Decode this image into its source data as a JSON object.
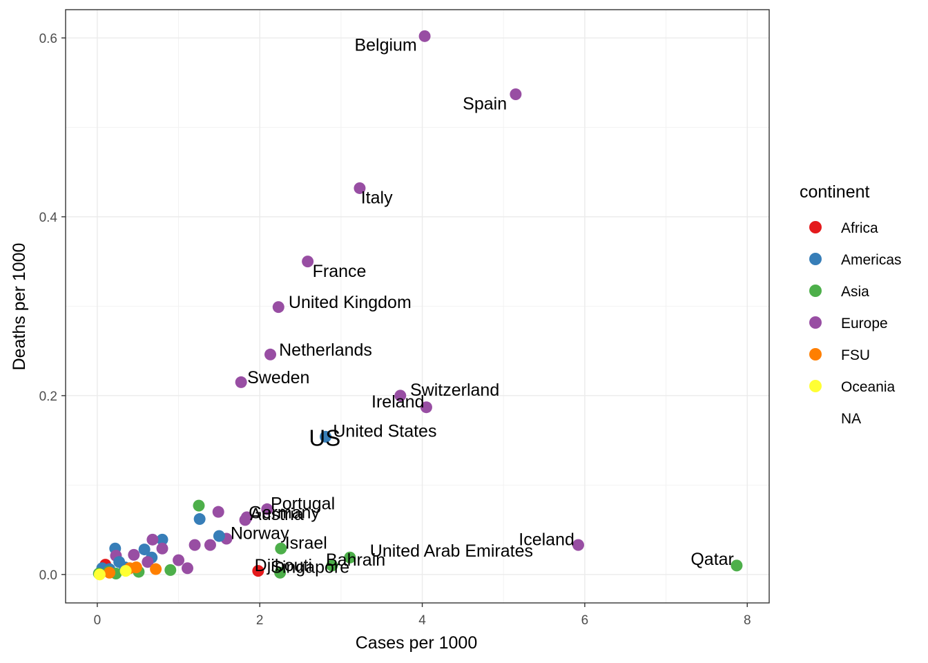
{
  "chart_data": {
    "type": "scatter",
    "xlabel": "Cases per 1000",
    "ylabel": "Deaths per 1000",
    "xlim": [
      -0.39,
      8.27
    ],
    "ylim": [
      -0.0318,
      0.6316
    ],
    "x_ticks": [
      0,
      2,
      4,
      6,
      8
    ],
    "x_tick_labels": [
      "0",
      "2",
      "4",
      "6",
      "8"
    ],
    "y_ticks": [
      0.0,
      0.2,
      0.4,
      0.6
    ],
    "y_tick_labels": [
      "0.0",
      "0.2",
      "0.4",
      "0.6"
    ],
    "grid": true,
    "legend": {
      "title": "continent",
      "position": "right",
      "entries": [
        {
          "name": "Africa",
          "color": "#E41A1C"
        },
        {
          "name": "Americas",
          "color": "#377EB8"
        },
        {
          "name": "Asia",
          "color": "#4DAF4A"
        },
        {
          "name": "Europe",
          "color": "#984EA3"
        },
        {
          "name": "FSU",
          "color": "#FF7F00"
        },
        {
          "name": "Oceania",
          "color": "#FFFF33"
        },
        {
          "name": "NA",
          "color": null
        }
      ]
    },
    "points": [
      {
        "x": 4.03,
        "y": 0.602,
        "continent": "Europe",
        "label": "Belgium",
        "label_x": 3.55,
        "label_y": 0.592
      },
      {
        "x": 5.15,
        "y": 0.537,
        "continent": "Europe",
        "label": "Spain",
        "label_x": 4.77,
        "label_y": 0.526
      },
      {
        "x": 3.23,
        "y": 0.432,
        "continent": "Europe",
        "label": "Italy",
        "label_x": 3.44,
        "label_y": 0.421
      },
      {
        "x": 2.59,
        "y": 0.35,
        "continent": "Europe",
        "label": "France",
        "label_x": 2.98,
        "label_y": 0.339
      },
      {
        "x": 2.23,
        "y": 0.299,
        "continent": "Europe",
        "label": "United Kingdom",
        "label_x": 3.11,
        "label_y": 0.304
      },
      {
        "x": 2.13,
        "y": 0.246,
        "continent": "Europe",
        "label": "Netherlands",
        "label_x": 2.81,
        "label_y": 0.251
      },
      {
        "x": 1.77,
        "y": 0.215,
        "continent": "Europe",
        "label": "Sweden",
        "label_x": 2.23,
        "label_y": 0.22
      },
      {
        "x": 3.73,
        "y": 0.2,
        "continent": "Europe",
        "label": "Switzerland",
        "label_x": 4.4,
        "label_y": 0.206
      },
      {
        "x": 4.05,
        "y": 0.187,
        "continent": "Europe",
        "label": "Ireland",
        "label_x": 3.7,
        "label_y": 0.193
      },
      {
        "x": 2.81,
        "y": 0.154,
        "continent": "Americas",
        "label": "United States",
        "label_x": 3.54,
        "label_y": 0.16
      },
      {
        "x": 2.09,
        "y": 0.073,
        "continent": "Europe",
        "label": "Portugal",
        "label_x": 2.53,
        "label_y": 0.079
      },
      {
        "x": 1.84,
        "y": 0.064,
        "continent": "Europe",
        "label": "Germany",
        "label_x": 2.3,
        "label_y": 0.069
      },
      {
        "x": 1.82,
        "y": 0.061,
        "continent": "Europe",
        "label": "Austria",
        "label_x": 2.21,
        "label_y": 0.067
      },
      {
        "x": 1.59,
        "y": 0.04,
        "continent": "Europe",
        "label": "Norway",
        "label_x": 2.0,
        "label_y": 0.046
      },
      {
        "x": 2.26,
        "y": 0.029,
        "continent": "Asia",
        "label": "Israel",
        "label_x": 2.57,
        "label_y": 0.035
      },
      {
        "x": 3.11,
        "y": 0.019,
        "continent": "Asia",
        "label": "United Arab Emirates",
        "label_x": 4.36,
        "label_y": 0.026
      },
      {
        "x": 2.89,
        "y": 0.01,
        "continent": "Asia",
        "label": "Bahrain",
        "label_x": 3.18,
        "label_y": 0.016
      },
      {
        "x": 2.25,
        "y": 0.002,
        "continent": "Asia",
        "label": "Singapore",
        "label_x": 2.62,
        "label_y": 0.008
      },
      {
        "x": 1.98,
        "y": 0.004,
        "continent": "Africa",
        "label": "Djibouti",
        "label_x": 2.29,
        "label_y": 0.01
      },
      {
        "x": 5.92,
        "y": 0.033,
        "continent": "Europe",
        "label": "Iceland",
        "label_x": 5.53,
        "label_y": 0.039
      },
      {
        "x": 7.87,
        "y": 0.01,
        "continent": "Asia",
        "label": "Qatar",
        "label_x": 7.57,
        "label_y": 0.017
      },
      {
        "x": 1.25,
        "y": 0.077,
        "continent": "Asia"
      },
      {
        "x": 1.26,
        "y": 0.062,
        "continent": "Americas"
      },
      {
        "x": 1.49,
        "y": 0.07,
        "continent": "Europe"
      },
      {
        "x": 1.5,
        "y": 0.043,
        "continent": "Americas"
      },
      {
        "x": 1.39,
        "y": 0.033,
        "continent": "Europe"
      },
      {
        "x": 1.2,
        "y": 0.033,
        "continent": "Europe"
      },
      {
        "x": 1.0,
        "y": 0.016,
        "continent": "Europe"
      },
      {
        "x": 1.11,
        "y": 0.007,
        "continent": "Europe"
      },
      {
        "x": 0.9,
        "y": 0.005,
        "continent": "Asia"
      },
      {
        "x": 0.8,
        "y": 0.039,
        "continent": "Americas"
      },
      {
        "x": 0.68,
        "y": 0.039,
        "continent": "Europe"
      },
      {
        "x": 0.8,
        "y": 0.029,
        "continent": "Europe"
      },
      {
        "x": 0.58,
        "y": 0.028,
        "continent": "Americas"
      },
      {
        "x": 0.22,
        "y": 0.029,
        "continent": "Americas"
      },
      {
        "x": 0.45,
        "y": 0.022,
        "continent": "Europe"
      },
      {
        "x": 0.23,
        "y": 0.021,
        "continent": "Europe"
      },
      {
        "x": 0.67,
        "y": 0.019,
        "continent": "Americas"
      },
      {
        "x": 0.62,
        "y": 0.014,
        "continent": "Europe"
      },
      {
        "x": 0.27,
        "y": 0.014,
        "continent": "Americas"
      },
      {
        "x": 0.1,
        "y": 0.011,
        "continent": "Africa"
      },
      {
        "x": 0.06,
        "y": 0.007,
        "continent": "Americas"
      },
      {
        "x": 0.15,
        "y": 0.006,
        "continent": "Americas"
      },
      {
        "x": 0.34,
        "y": 0.008,
        "continent": "Americas"
      },
      {
        "x": 0.51,
        "y": 0.003,
        "continent": "Asia"
      },
      {
        "x": 0.48,
        "y": 0.008,
        "continent": "FSU"
      },
      {
        "x": 0.72,
        "y": 0.006,
        "continent": "FSU"
      },
      {
        "x": 0.4,
        "y": 0.007,
        "continent": "FSU"
      },
      {
        "x": 0.14,
        "y": 0.003,
        "continent": "Asia"
      },
      {
        "x": 0.23,
        "y": 0.001,
        "continent": "Asia"
      },
      {
        "x": 0.02,
        "y": 0.001,
        "continent": "Asia"
      },
      {
        "x": 0.15,
        "y": 0.002,
        "continent": "FSU"
      },
      {
        "x": 0.35,
        "y": 0.004,
        "continent": "Oceania"
      },
      {
        "x": 0.03,
        "y": 0.0,
        "continent": "Oceania"
      }
    ],
    "extra_labels": [
      {
        "text": "US",
        "x": 2.8,
        "y": 0.153,
        "size": "large"
      }
    ]
  }
}
